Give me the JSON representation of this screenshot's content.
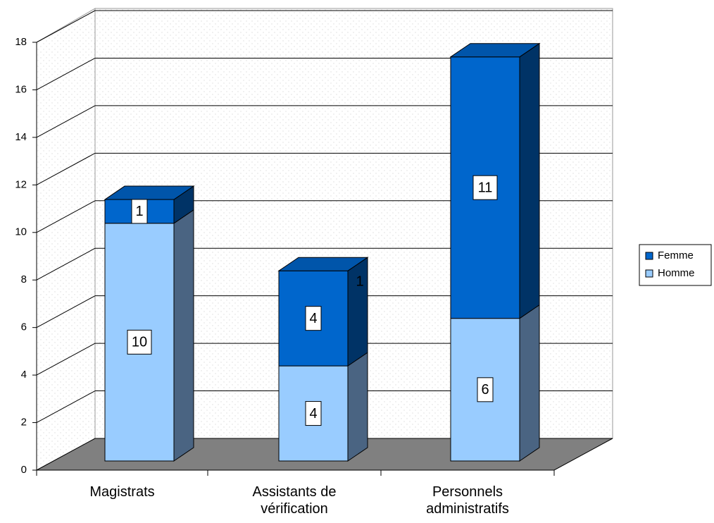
{
  "chart_data": {
    "type": "bar3d_stacked",
    "categories": [
      "Magistrats",
      "Assistants de vérification",
      "Personnels administratifs"
    ],
    "series": [
      {
        "name": "Homme",
        "color": "#99ccff",
        "side_color": "#4a6482",
        "values": [
          10,
          4,
          6
        ]
      },
      {
        "name": "Femme",
        "color": "#0066cc",
        "side_color": "#003366",
        "values": [
          1,
          4,
          11
        ]
      }
    ],
    "annotations": [
      "1"
    ],
    "ylim": [
      0,
      18
    ],
    "yticks": [
      0,
      2,
      4,
      6,
      8,
      10,
      12,
      14,
      16,
      18
    ],
    "grid": true,
    "legend": "right"
  }
}
